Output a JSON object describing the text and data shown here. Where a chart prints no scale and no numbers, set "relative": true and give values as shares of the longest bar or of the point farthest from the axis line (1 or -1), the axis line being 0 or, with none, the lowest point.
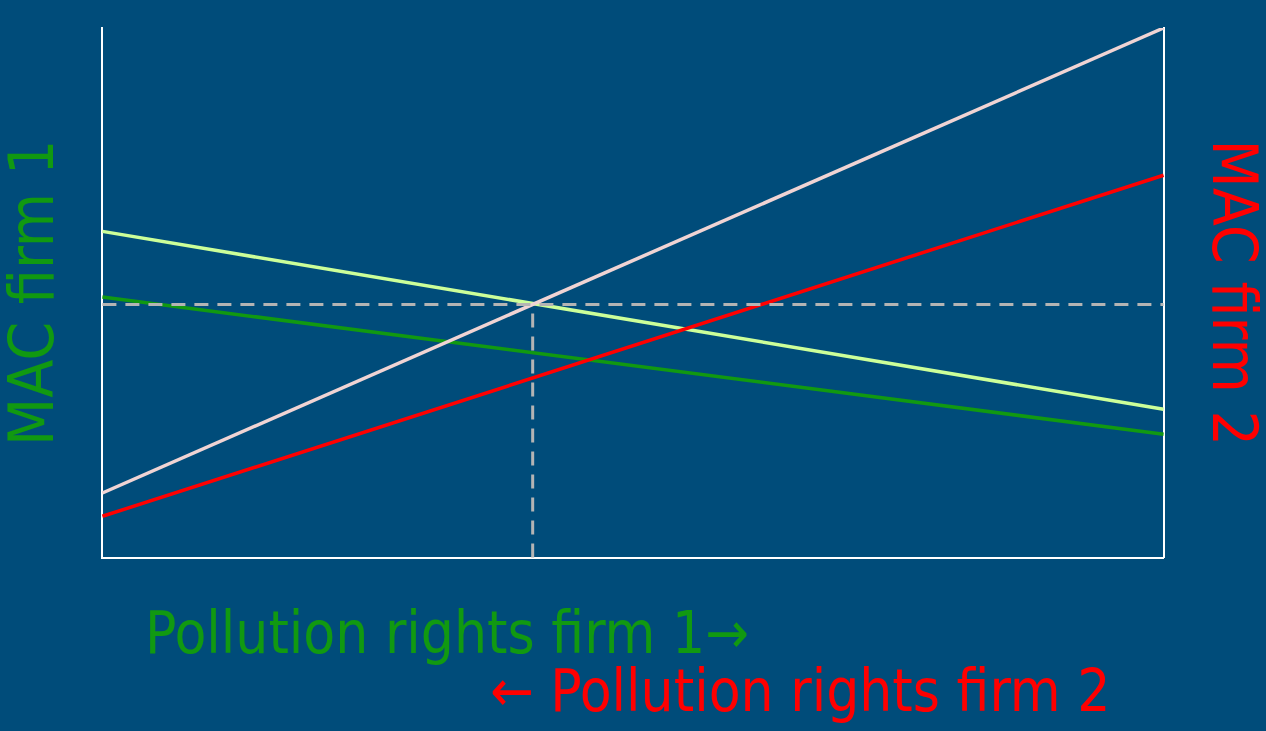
{
  "chart_data": {
    "type": "line",
    "relative": true,
    "xlabel": "Pollution rights firm 1→",
    "ylabel": "MAC firm 1",
    "y2label": "MAC firm 2",
    "annotations": [
      "← Pollution rights firm 2"
    ],
    "grid": false,
    "legend": false,
    "marker": "none",
    "line_style": "solid",
    "categories": [
      null,
      null
    ],
    "series": [
      {
        "color": "#f0d4d4",
        "values": [
          0.122,
          1
        ]
      },
      {
        "color": "#ff0000",
        "values": [
          0.078,
          0.722
        ]
      },
      {
        "color": "#ccff99",
        "values": [
          0.616,
          0.28
        ]
      },
      {
        "color": "#119911",
        "values": [
          0.492,
          0.233
        ]
      }
    ],
    "ref_lines": [
      {
        "axis": "y",
        "value": 0.478,
        "color": "#b4b4b4",
        "line_style": "dashed"
      }
    ]
  }
}
